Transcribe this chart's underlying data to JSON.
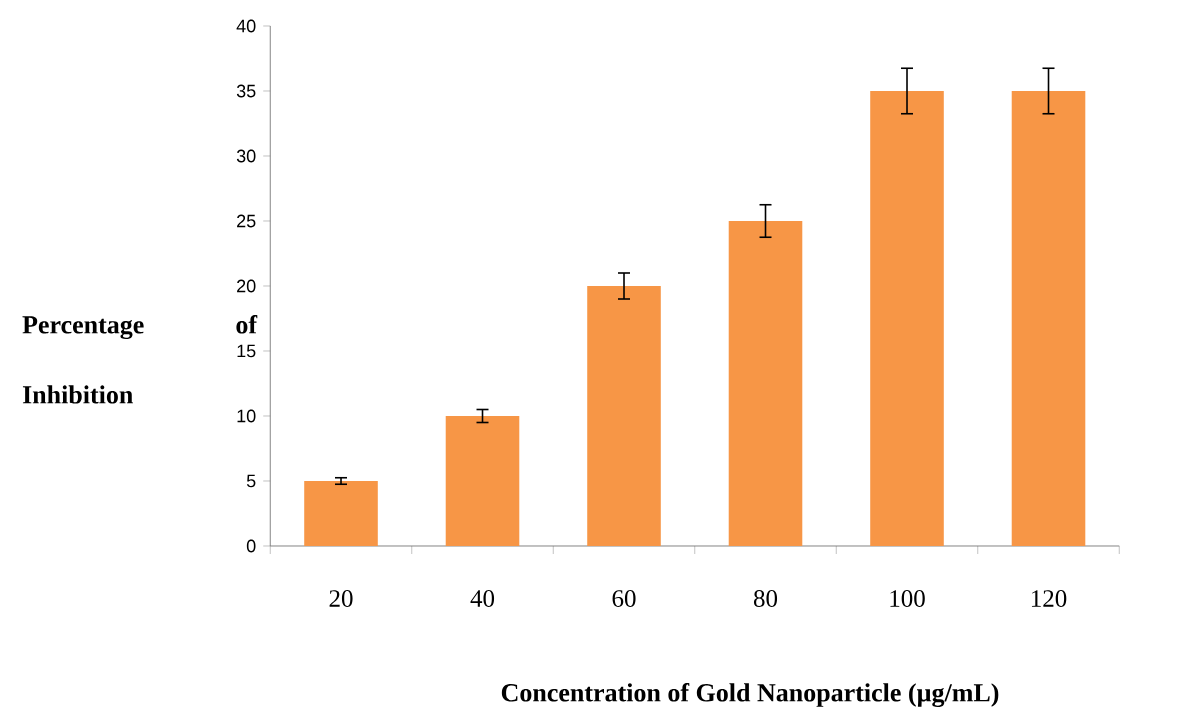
{
  "chart_data": {
    "type": "bar",
    "xlabel": "Concentration of Gold Nanoparticle (µg/mL)",
    "ylabel": "Percentage of Inhibition",
    "categories": [
      "20",
      "40",
      "60",
      "80",
      "100",
      "120"
    ],
    "values": [
      5,
      10,
      20,
      25,
      35,
      35
    ],
    "errors": [
      0.25,
      0.5,
      1,
      1.25,
      1.75,
      1.75
    ],
    "color": "#f79646",
    "ylim": [
      0,
      40
    ],
    "yticks": [
      0,
      5,
      10,
      15,
      20,
      25,
      30,
      35,
      40
    ]
  }
}
